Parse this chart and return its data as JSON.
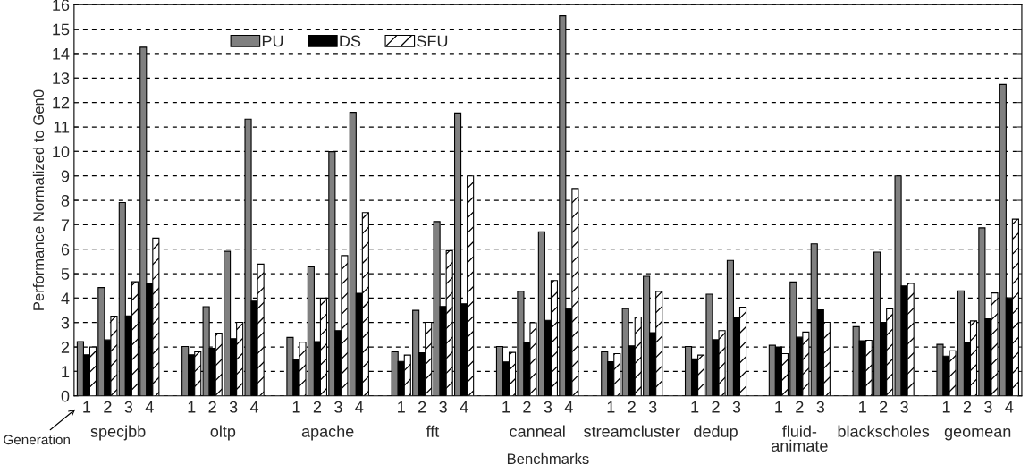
{
  "chart_data": {
    "type": "bar",
    "categories": [
      "1",
      "2",
      "3",
      "4",
      null,
      "1",
      "2",
      "3",
      "4",
      null,
      "1",
      "2",
      "3",
      "4",
      null,
      "1",
      "2",
      "3",
      "4",
      null,
      "1",
      "2",
      "3",
      "4",
      null,
      "1",
      "2",
      "3",
      null,
      "1",
      "2",
      "3",
      null,
      "1",
      "2",
      "3",
      null,
      "1",
      "2",
      "3",
      null,
      "1",
      "2",
      "3",
      "4"
    ],
    "series": [
      {
        "name": "PU",
        "color": "#808080",
        "values": [
          2.22,
          4.43,
          7.91,
          14.26,
          null,
          2.02,
          3.65,
          5.91,
          11.32,
          null,
          2.39,
          5.28,
          9.99,
          11.6,
          null,
          1.8,
          3.5,
          7.13,
          11.57,
          null,
          2.02,
          4.28,
          6.71,
          15.55,
          null,
          1.8,
          3.57,
          4.89,
          null,
          2.02,
          4.16,
          5.54,
          null,
          2.07,
          4.66,
          6.22,
          null,
          2.83,
          5.88,
          9.0,
          null,
          2.11,
          4.3,
          6.87,
          12.74
        ]
      },
      {
        "name": "DS",
        "color": "#000000",
        "values": [
          1.68,
          2.29,
          3.27,
          4.62,
          null,
          1.68,
          1.95,
          2.34,
          3.88,
          null,
          1.51,
          2.22,
          2.67,
          4.2,
          null,
          1.41,
          1.76,
          3.66,
          3.77,
          null,
          1.39,
          2.2,
          3.09,
          3.57,
          null,
          1.4,
          2.05,
          2.59,
          null,
          1.52,
          2.3,
          3.21,
          null,
          2.0,
          2.4,
          3.52,
          null,
          2.26,
          3.01,
          4.5,
          null,
          1.63,
          2.2,
          3.15,
          4.01
        ]
      },
      {
        "name": "SFU",
        "color": "#ffffff",
        "values": [
          2.0,
          3.26,
          4.67,
          6.45,
          null,
          1.8,
          2.57,
          3.01,
          5.39,
          null,
          2.2,
          4.0,
          5.74,
          7.5,
          null,
          1.67,
          3.01,
          5.94,
          9.0,
          null,
          1.78,
          2.99,
          4.72,
          8.48,
          null,
          1.73,
          3.23,
          4.27,
          null,
          1.67,
          2.67,
          3.63,
          null,
          1.73,
          2.61,
          3.01,
          null,
          2.28,
          3.56,
          4.6,
          null,
          1.85,
          3.07,
          4.21,
          7.23
        ]
      }
    ],
    "ylim": [
      0,
      16
    ],
    "yticks": [
      0,
      1,
      2,
      3,
      4,
      5,
      6,
      7,
      8,
      9,
      10,
      11,
      12,
      13,
      14,
      15,
      16
    ],
    "xlabel": "Benchmarks",
    "ylabel": "Performance Normalized to Gen0",
    "annotations": [
      "Generation",
      "specjbb",
      "oltp",
      "apache",
      "fft",
      "canneal",
      "streamcluster",
      "dedup",
      "fluid-\nanimate",
      "blackscholes",
      "geomean"
    ],
    "grid": "y",
    "legend": "top left"
  }
}
